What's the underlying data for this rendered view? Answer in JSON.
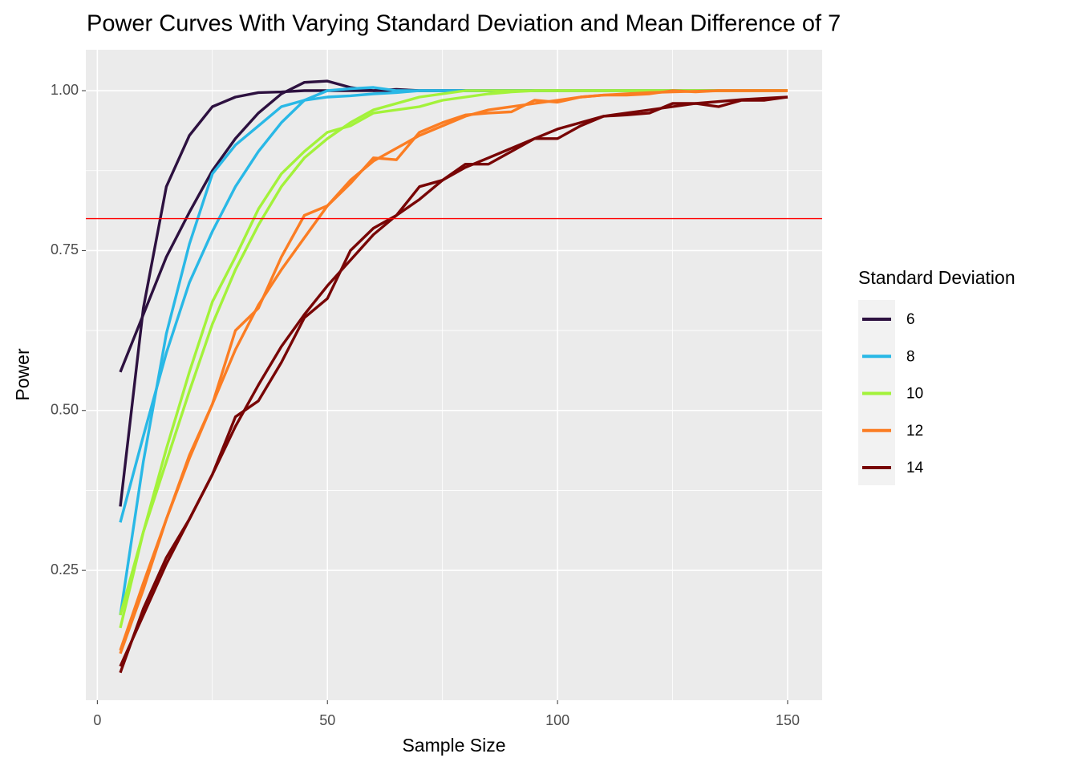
{
  "chart_data": {
    "type": "line",
    "title": "Power Curves With Varying Standard Deviation and Mean Difference of 7",
    "x_label": "Sample Size",
    "y_label": "Power",
    "legend_title": "Standard Deviation",
    "legend_position": "right",
    "grid": true,
    "x": [
      5,
      10,
      15,
      20,
      25,
      30,
      35,
      40,
      45,
      50,
      55,
      60,
      65,
      70,
      75,
      80,
      85,
      90,
      95,
      100,
      105,
      110,
      115,
      120,
      125,
      130,
      135,
      140,
      145,
      150
    ],
    "xlim": [
      -2.5,
      157.5
    ],
    "xticks": [
      0,
      50,
      100,
      150
    ],
    "ylim": [
      0.047,
      1.064
    ],
    "yticks": [
      0.25,
      {
        "value": 0.5,
        "label": "0.50"
      },
      0.75,
      {
        "value": 1.0,
        "label": "1.00"
      }
    ],
    "hline": {
      "value": 0.8,
      "color": "#ff0000"
    },
    "series": [
      {
        "name": "6",
        "color": "#2d1140",
        "curves": [
          [
            0.35,
            0.66,
            0.85,
            0.93,
            0.975,
            0.99,
            0.997,
            0.998,
            1.0,
            1.0,
            1.0,
            1.0,
            1.0,
            1.0,
            1.0,
            1.0,
            1.0,
            1.0,
            1.0,
            1.0,
            1.0,
            1.0,
            1.0,
            1.0,
            1.0,
            1.0,
            1.0,
            1.0,
            1.0,
            1.0
          ],
          [
            0.56,
            0.65,
            0.74,
            0.81,
            0.875,
            0.925,
            0.965,
            0.995,
            1.013,
            1.015,
            1.005,
            1.0,
            1.002,
            1.0,
            1.0,
            1.0,
            1.0,
            1.0,
            1.0,
            1.0,
            1.0,
            1.0,
            1.0,
            1.0,
            1.0,
            1.0,
            1.0,
            1.0,
            1.0,
            1.0
          ]
        ]
      },
      {
        "name": "8",
        "color": "#29b8e6",
        "curves": [
          [
            0.18,
            0.42,
            0.62,
            0.76,
            0.87,
            0.915,
            0.945,
            0.975,
            0.985,
            0.99,
            0.992,
            0.995,
            0.997,
            1.0,
            1.0,
            1.0,
            1.0,
            1.0,
            1.0,
            1.0,
            1.0,
            1.0,
            1.0,
            1.0,
            1.0,
            1.0,
            1.0,
            1.0,
            1.0,
            1.0
          ],
          [
            0.325,
            0.46,
            0.59,
            0.7,
            0.78,
            0.85,
            0.905,
            0.95,
            0.985,
            1.0,
            1.003,
            1.005,
            1.0,
            1.0,
            1.0,
            1.0,
            1.0,
            1.0,
            1.0,
            1.0,
            1.0,
            1.0,
            1.0,
            1.0,
            1.0,
            1.0,
            1.0,
            1.0,
            1.0,
            1.0
          ]
        ]
      },
      {
        "name": "10",
        "color": "#a3f23a",
        "curves": [
          [
            0.16,
            0.31,
            0.44,
            0.56,
            0.67,
            0.74,
            0.815,
            0.87,
            0.905,
            0.935,
            0.945,
            0.965,
            0.97,
            0.975,
            0.985,
            0.99,
            0.995,
            0.998,
            1.0,
            1.0,
            1.0,
            1.0,
            1.0,
            1.0,
            1.0,
            1.0,
            1.0,
            1.0,
            1.0,
            1.0
          ],
          [
            0.18,
            0.31,
            0.42,
            0.53,
            0.635,
            0.72,
            0.79,
            0.85,
            0.895,
            0.925,
            0.95,
            0.97,
            0.98,
            0.99,
            0.995,
            1.0,
            1.0,
            1.0,
            1.0,
            1.0,
            1.0,
            1.0,
            1.0,
            1.0,
            1.0,
            1.0,
            1.0,
            1.0,
            1.0,
            1.0
          ]
        ]
      },
      {
        "name": "12",
        "color": "#fb7d23",
        "curves": [
          [
            0.12,
            0.22,
            0.33,
            0.43,
            0.51,
            0.625,
            0.66,
            0.74,
            0.805,
            0.82,
            0.855,
            0.895,
            0.892,
            0.935,
            0.95,
            0.962,
            0.965,
            0.967,
            0.985,
            0.982,
            0.99,
            0.993,
            0.993,
            0.995,
            1.0,
            0.998,
            1.0,
            1.0,
            1.0,
            1.0
          ],
          [
            0.125,
            0.23,
            0.33,
            0.425,
            0.51,
            0.595,
            0.665,
            0.72,
            0.77,
            0.82,
            0.86,
            0.89,
            0.91,
            0.93,
            0.945,
            0.96,
            0.97,
            0.975,
            0.98,
            0.985,
            0.99,
            0.993,
            0.995,
            0.997,
            0.998,
            0.999,
            1.0,
            1.0,
            1.0,
            1.0
          ]
        ]
      },
      {
        "name": "14",
        "color": "#780505",
        "curves": [
          [
            0.09,
            0.19,
            0.27,
            0.33,
            0.4,
            0.49,
            0.515,
            0.575,
            0.645,
            0.675,
            0.75,
            0.785,
            0.805,
            0.85,
            0.86,
            0.885,
            0.885,
            0.905,
            0.925,
            0.925,
            0.945,
            0.96,
            0.962,
            0.965,
            0.98,
            0.98,
            0.975,
            0.985,
            0.985,
            0.99
          ],
          [
            0.1,
            0.18,
            0.26,
            0.33,
            0.4,
            0.475,
            0.54,
            0.6,
            0.65,
            0.695,
            0.735,
            0.775,
            0.805,
            0.83,
            0.86,
            0.88,
            0.895,
            0.91,
            0.925,
            0.94,
            0.95,
            0.96,
            0.965,
            0.97,
            0.975,
            0.98,
            0.983,
            0.986,
            0.988,
            0.99
          ]
        ]
      }
    ]
  }
}
